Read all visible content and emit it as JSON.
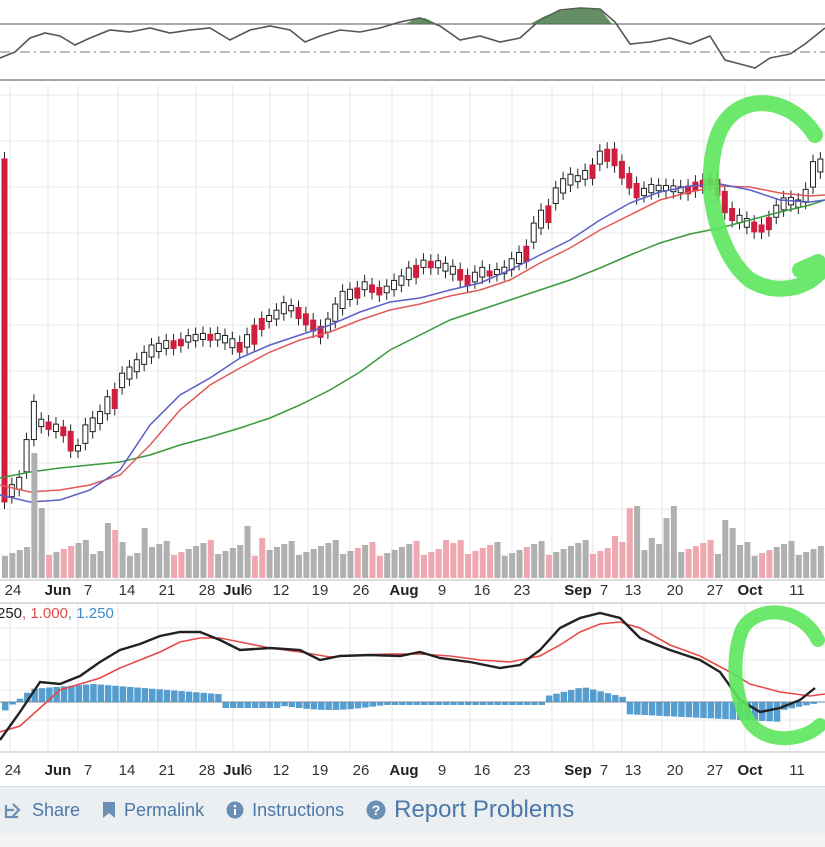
{
  "chart_data": {
    "type": "candlestick",
    "x_ticks": [
      {
        "label": "24",
        "bold": false
      },
      {
        "label": "Jun",
        "bold": true
      },
      {
        "label": "7",
        "bold": false
      },
      {
        "label": "14",
        "bold": false
      },
      {
        "label": "21",
        "bold": false
      },
      {
        "label": "28",
        "bold": false
      },
      {
        "label": "Jul",
        "bold": true
      },
      {
        "label": "6",
        "bold": false
      },
      {
        "label": "12",
        "bold": false
      },
      {
        "label": "19",
        "bold": false
      },
      {
        "label": "26",
        "bold": false
      },
      {
        "label": "Aug",
        "bold": true
      },
      {
        "label": "9",
        "bold": false
      },
      {
        "label": "16",
        "bold": false
      },
      {
        "label": "23",
        "bold": false
      },
      {
        "label": "Sep",
        "bold": true
      },
      {
        "label": "7",
        "bold": false
      },
      {
        "label": "13",
        "bold": false
      },
      {
        "label": "20",
        "bold": false
      },
      {
        "label": "27",
        "bold": false
      },
      {
        "label": "Oct",
        "bold": true
      },
      {
        "label": "11",
        "bold": false
      }
    ],
    "price_panel": {
      "candles": {
        "count": 112,
        "open_close_pattern": "approximate",
        "colors": {
          "up": "#ffffff",
          "down": "#cf1f3f",
          "up_border": "#222222"
        }
      },
      "moving_averages": [
        {
          "name": "ma_short",
          "color": "#5a5fc8"
        },
        {
          "name": "ma_medium",
          "color": "#e05a5a"
        },
        {
          "name": "ma_long",
          "color": "#3a9a3a"
        }
      ]
    },
    "volume_panel": {
      "colors": {
        "up": "#b0b0b0",
        "down": "#f0a8b0"
      }
    },
    "macd_panel": {
      "parameters": [
        "250",
        "1.000",
        "1.250"
      ],
      "colors": {
        "macd": "#222222",
        "signal": "#e84a4a",
        "histogram": "#3a8dc8"
      }
    },
    "rsi_panel": {
      "fill_color": "#4a7a4a"
    },
    "annotations": [
      {
        "shape": "handdrawn-C",
        "color": "#5ce65c",
        "panel": "price"
      },
      {
        "shape": "handdrawn-C",
        "color": "#5ce65c",
        "panel": "macd"
      }
    ]
  },
  "macd_params": {
    "p1": "250",
    "comma1": ", ",
    "p2": "1.000",
    "comma2": ", ",
    "p3": "1.250"
  },
  "footer": {
    "share_label": "Share",
    "permalink_label": "Permalink",
    "instructions_label": "Instructions",
    "report_label": "Report Problems"
  },
  "colors": {
    "footer_bg": "#eceff2",
    "link": "#4a78a8",
    "annotation": "#5ce65c"
  }
}
